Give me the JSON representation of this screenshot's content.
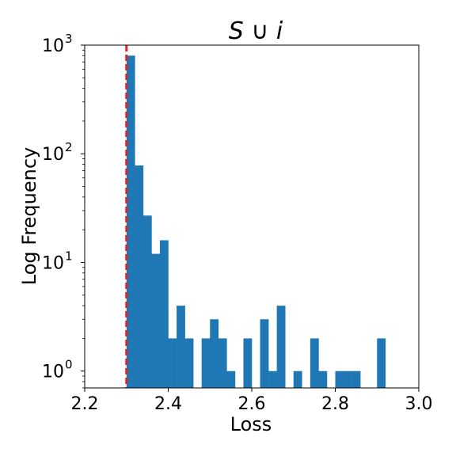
{
  "chart_data": {
    "type": "bar",
    "title_parts": [
      "S",
      " ∪ ",
      "i"
    ],
    "xlabel": "Loss",
    "ylabel": "Log Frequency",
    "xlim": [
      2.2,
      3.0
    ],
    "ylim": [
      0.7,
      1000
    ],
    "yscale": "log",
    "grid": false,
    "legend": "none",
    "bar_color": "#1f77b4",
    "vline": {
      "x": 2.3,
      "color": "#d62728",
      "style": "dashed"
    },
    "bin_width": 0.02,
    "x_ticks": [
      {
        "value": 2.2,
        "label": "2.2"
      },
      {
        "value": 2.4,
        "label": "2.4"
      },
      {
        "value": 2.6,
        "label": "2.6"
      },
      {
        "value": 2.8,
        "label": "2.8"
      },
      {
        "value": 3.0,
        "label": "3.0"
      }
    ],
    "y_ticks": [
      {
        "value": 1,
        "base": "10",
        "exp": "0"
      },
      {
        "value": 10,
        "base": "10",
        "exp": "1"
      },
      {
        "value": 100,
        "base": "10",
        "exp": "2"
      },
      {
        "value": 1000,
        "base": "10",
        "exp": "3"
      }
    ],
    "bins": [
      {
        "x": 2.3,
        "count": 800
      },
      {
        "x": 2.32,
        "count": 78
      },
      {
        "x": 2.34,
        "count": 27
      },
      {
        "x": 2.36,
        "count": 12
      },
      {
        "x": 2.38,
        "count": 16
      },
      {
        "x": 2.4,
        "count": 2
      },
      {
        "x": 2.42,
        "count": 4
      },
      {
        "x": 2.44,
        "count": 2
      },
      {
        "x": 2.48,
        "count": 2
      },
      {
        "x": 2.5,
        "count": 3
      },
      {
        "x": 2.52,
        "count": 2
      },
      {
        "x": 2.54,
        "count": 1
      },
      {
        "x": 2.58,
        "count": 2
      },
      {
        "x": 2.62,
        "count": 3
      },
      {
        "x": 2.64,
        "count": 1
      },
      {
        "x": 2.66,
        "count": 4
      },
      {
        "x": 2.7,
        "count": 1
      },
      {
        "x": 2.74,
        "count": 2
      },
      {
        "x": 2.76,
        "count": 1
      },
      {
        "x": 2.8,
        "count": 1
      },
      {
        "x": 2.82,
        "count": 1
      },
      {
        "x": 2.84,
        "count": 1
      },
      {
        "x": 2.9,
        "count": 2
      }
    ]
  }
}
